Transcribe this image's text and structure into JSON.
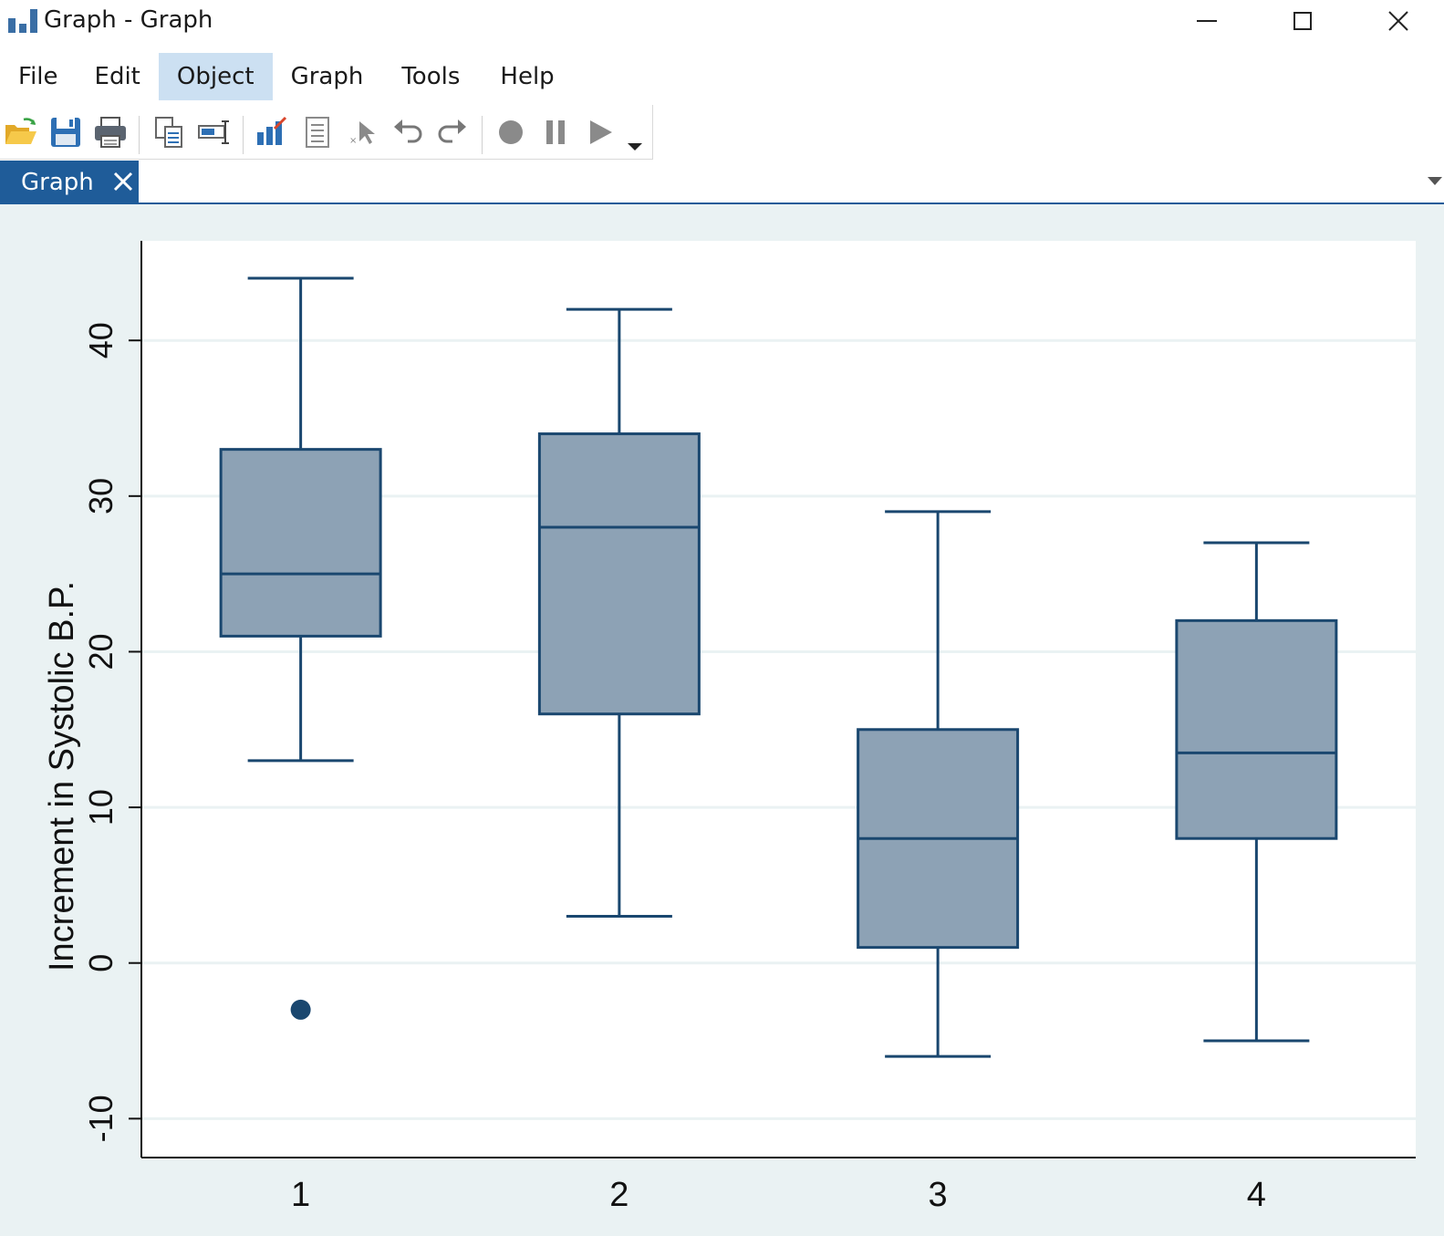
{
  "window": {
    "title": "Graph - Graph",
    "app_icon": "bar-chart-icon",
    "controls": [
      "minimize-icon",
      "maximize-icon",
      "close-icon"
    ]
  },
  "menu": {
    "items": [
      {
        "label": "File",
        "active": false
      },
      {
        "label": "Edit",
        "active": false
      },
      {
        "label": "Object",
        "active": true
      },
      {
        "label": "Graph",
        "active": false
      },
      {
        "label": "Tools",
        "active": false
      },
      {
        "label": "Help",
        "active": false
      }
    ]
  },
  "toolbar": {
    "buttons": [
      "open-icon",
      "save-icon",
      "print-icon",
      "copy-icon",
      "rename-icon",
      "graph-editor-icon",
      "properties-icon",
      "pointer-icon",
      "undo-icon",
      "redo-icon",
      "record-icon",
      "pause-icon",
      "play-icon",
      "dropdown-icon"
    ]
  },
  "tabs": [
    {
      "label": "Graph",
      "active": true
    }
  ],
  "colors": {
    "box_fill": "#8da2b5",
    "box_stroke": "#1a476f",
    "plot_bg": "#ffffff",
    "outer_bg": "#eaf2f3",
    "tab_active": "#1f5c99",
    "menu_active": "#cce0f2"
  },
  "chart_data": {
    "type": "box",
    "title": "",
    "xlabel": "",
    "ylabel": "Increment in Systolic B.P.",
    "categories": [
      "1",
      "2",
      "3",
      "4"
    ],
    "y_ticks": [
      -10,
      0,
      10,
      20,
      30,
      40
    ],
    "ylim": [
      -12.5,
      46.4
    ],
    "grid": true,
    "legend": "none",
    "boxes": [
      {
        "category": "1",
        "whisker_low": 13,
        "q1": 21,
        "median": 25,
        "q3": 33,
        "whisker_high": 44,
        "outliers": [
          -3
        ]
      },
      {
        "category": "2",
        "whisker_low": 3,
        "q1": 16,
        "median": 28,
        "q3": 34,
        "whisker_high": 42,
        "outliers": []
      },
      {
        "category": "3",
        "whisker_low": -6,
        "q1": 1,
        "median": 8,
        "q3": 15,
        "whisker_high": 29,
        "outliers": []
      },
      {
        "category": "4",
        "whisker_low": -5,
        "q1": 8,
        "median": 13.5,
        "q3": 22,
        "whisker_high": 27,
        "outliers": []
      }
    ]
  }
}
